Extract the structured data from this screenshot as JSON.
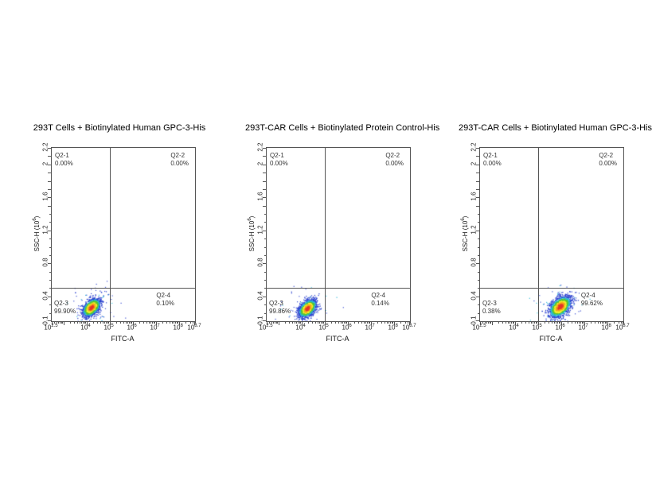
{
  "page": {
    "background": "#ffffff"
  },
  "chart_data": [
    {
      "type": "scatter",
      "title": "293T Cells + Biotinylated Human GPC-3-His",
      "xlabel": "FITC-A",
      "ylabel": {
        "prefix": "SSC-H (10",
        "sup": "6",
        "suffix": ")"
      },
      "x_scale": "log",
      "x_range_exp": [
        2.5,
        8.7
      ],
      "x_ticks_exp": [
        2.5,
        4,
        5,
        6,
        7,
        8,
        8.7
      ],
      "y_range": [
        0.1,
        2.2
      ],
      "y_ticks": [
        2.2,
        2,
        1.6,
        1.2,
        0.8,
        0.4,
        0.1
      ],
      "gate": {
        "x_exp": 5,
        "y": 0.5
      },
      "quadrants": [
        {
          "name": "Q2-1",
          "pct": "0.00%"
        },
        {
          "name": "Q2-2",
          "pct": "0.00%"
        },
        {
          "name": "Q2-3",
          "pct": "99.90%"
        },
        {
          "name": "Q2-4",
          "pct": "0.10%"
        }
      ],
      "cluster": {
        "cx_exp": 4.2,
        "cy": 0.27,
        "sx_exp": 0.18,
        "sy": 0.05,
        "rho": 0.45,
        "n": 1800
      },
      "outliers": {
        "n": 85,
        "sx_exp": 0.55,
        "sy": 0.13
      },
      "seed": 11
    },
    {
      "type": "scatter",
      "title": "293T-CAR Cells + Biotinylated Protein Control-His",
      "xlabel": "FITC-A",
      "ylabel": {
        "prefix": "SSC-H (10",
        "sup": "6",
        "suffix": ")"
      },
      "x_scale": "log",
      "x_range_exp": [
        2.5,
        8.7
      ],
      "x_ticks_exp": [
        2.5,
        4,
        5,
        6,
        7,
        8,
        8.7
      ],
      "y_range": [
        0.1,
        2.2
      ],
      "y_ticks": [
        2.2,
        2,
        1.6,
        1.2,
        0.8,
        0.4,
        0.1
      ],
      "gate": {
        "x_exp": 5,
        "y": 0.5
      },
      "quadrants": [
        {
          "name": "Q2-1",
          "pct": "0.00%"
        },
        {
          "name": "Q2-2",
          "pct": "0.00%"
        },
        {
          "name": "Q2-3",
          "pct": "99.86%"
        },
        {
          "name": "Q2-4",
          "pct": "0.14%"
        }
      ],
      "cluster": {
        "cx_exp": 4.25,
        "cy": 0.26,
        "sx_exp": 0.18,
        "sy": 0.05,
        "rho": 0.45,
        "n": 1800
      },
      "outliers": {
        "n": 85,
        "sx_exp": 0.55,
        "sy": 0.13
      },
      "seed": 22
    },
    {
      "type": "scatter",
      "title": "293T-CAR Cells + Biotinylated Human GPC-3-His",
      "xlabel": "FITC-A",
      "ylabel": {
        "prefix": "SSC-H (10",
        "sup": "6",
        "suffix": ")"
      },
      "x_scale": "log",
      "x_range_exp": [
        2.5,
        8.7
      ],
      "x_ticks_exp": [
        2.5,
        4,
        5,
        6,
        7,
        8,
        8.7
      ],
      "y_range": [
        0.1,
        2.2
      ],
      "y_ticks": [
        2.2,
        2,
        1.6,
        1.2,
        0.8,
        0.4,
        0.1
      ],
      "gate": {
        "x_exp": 5,
        "y": 0.5
      },
      "quadrants": [
        {
          "name": "Q2-1",
          "pct": "0.00%"
        },
        {
          "name": "Q2-2",
          "pct": "0.00%"
        },
        {
          "name": "Q2-3",
          "pct": "0.38%"
        },
        {
          "name": "Q2-4",
          "pct": "99.62%"
        }
      ],
      "cluster": {
        "cx_exp": 5.95,
        "cy": 0.28,
        "sx_exp": 0.22,
        "sy": 0.06,
        "rho": 0.45,
        "n": 1900
      },
      "outliers": {
        "n": 90,
        "sx_exp": 0.6,
        "sy": 0.13
      },
      "seed": 33
    }
  ]
}
